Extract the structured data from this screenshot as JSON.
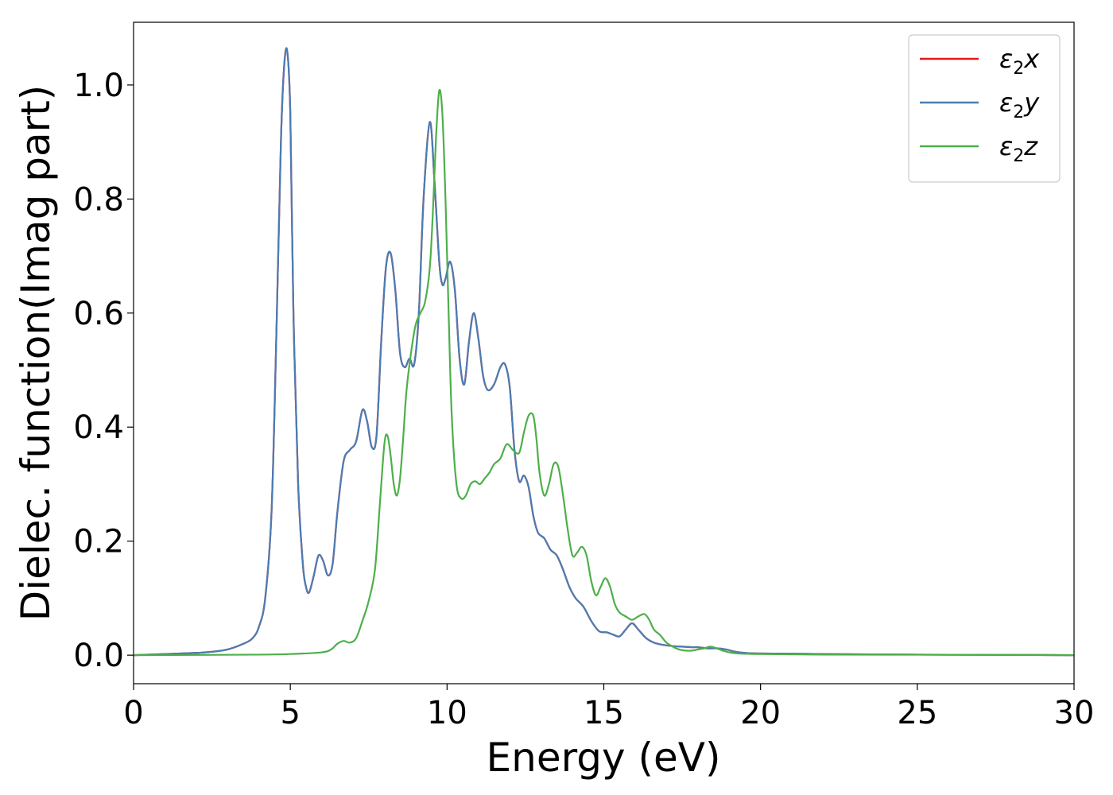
{
  "chart_data": {
    "type": "line",
    "xlabel": "Energy (eV)",
    "ylabel": "Dielec. function(Imag part)",
    "xlim": [
      0,
      30
    ],
    "ylim": [
      -0.05,
      1.11
    ],
    "xticks": [
      "0",
      "5",
      "10",
      "15",
      "20",
      "25",
      "30"
    ],
    "yticks": [
      "0.0",
      "0.2",
      "0.4",
      "0.6",
      "0.8",
      "1.0"
    ],
    "grid": false,
    "legend_position": "top-right",
    "series": [
      {
        "name": "ε₂x",
        "legend_symbol": "ε",
        "legend_sub": "2",
        "legend_suffix": "x",
        "color": "#e41a1c",
        "x": [
          0,
          1,
          2,
          2.5,
          3,
          3.5,
          3.8,
          4.0,
          4.2,
          4.4,
          4.55,
          4.7,
          4.8,
          4.9,
          5.0,
          5.1,
          5.25,
          5.4,
          5.5,
          5.6,
          5.75,
          5.9,
          6.05,
          6.2,
          6.35,
          6.5,
          6.7,
          6.9,
          7.1,
          7.3,
          7.45,
          7.6,
          7.75,
          7.9,
          8.05,
          8.2,
          8.35,
          8.5,
          8.65,
          8.8,
          8.95,
          9.1,
          9.25,
          9.45,
          9.6,
          9.75,
          9.85,
          9.95,
          10.1,
          10.25,
          10.4,
          10.55,
          10.7,
          10.85,
          11.0,
          11.15,
          11.3,
          11.5,
          11.7,
          11.85,
          12.0,
          12.15,
          12.3,
          12.45,
          12.6,
          12.75,
          12.9,
          13.1,
          13.3,
          13.5,
          13.7,
          13.9,
          14.1,
          14.35,
          14.6,
          14.85,
          15.1,
          15.3,
          15.5,
          15.7,
          15.9,
          16.1,
          16.35,
          16.6,
          16.9,
          17.2,
          17.5,
          17.8,
          18.0,
          18.3,
          18.6,
          18.9,
          19.2,
          19.5,
          20,
          22,
          25,
          28,
          30
        ],
        "values": [
          0.0,
          0.002,
          0.004,
          0.006,
          0.01,
          0.02,
          0.03,
          0.05,
          0.1,
          0.25,
          0.55,
          0.9,
          1.03,
          1.06,
          0.95,
          0.6,
          0.3,
          0.16,
          0.12,
          0.11,
          0.14,
          0.175,
          0.165,
          0.14,
          0.16,
          0.25,
          0.34,
          0.36,
          0.375,
          0.43,
          0.41,
          0.365,
          0.385,
          0.55,
          0.68,
          0.705,
          0.64,
          0.53,
          0.505,
          0.52,
          0.51,
          0.6,
          0.8,
          0.935,
          0.83,
          0.69,
          0.65,
          0.66,
          0.69,
          0.64,
          0.52,
          0.475,
          0.55,
          0.6,
          0.555,
          0.49,
          0.465,
          0.475,
          0.505,
          0.51,
          0.47,
          0.36,
          0.305,
          0.315,
          0.295,
          0.245,
          0.215,
          0.205,
          0.185,
          0.175,
          0.15,
          0.12,
          0.1,
          0.085,
          0.06,
          0.042,
          0.04,
          0.036,
          0.033,
          0.045,
          0.056,
          0.045,
          0.03,
          0.022,
          0.018,
          0.016,
          0.015,
          0.014,
          0.014,
          0.012,
          0.012,
          0.01,
          0.006,
          0.004,
          0.003,
          0.002,
          0.001,
          0.0005,
          0.0
        ]
      },
      {
        "name": "ε₂y",
        "legend_symbol": "ε",
        "legend_sub": "2",
        "legend_suffix": "y",
        "color": "#4a7db3",
        "x": [
          0,
          1,
          2,
          2.5,
          3,
          3.5,
          3.8,
          4.0,
          4.2,
          4.4,
          4.55,
          4.7,
          4.8,
          4.9,
          5.0,
          5.1,
          5.25,
          5.4,
          5.5,
          5.6,
          5.75,
          5.9,
          6.05,
          6.2,
          6.35,
          6.5,
          6.7,
          6.9,
          7.1,
          7.3,
          7.45,
          7.6,
          7.75,
          7.9,
          8.05,
          8.2,
          8.35,
          8.5,
          8.65,
          8.8,
          8.95,
          9.1,
          9.25,
          9.45,
          9.6,
          9.75,
          9.85,
          9.95,
          10.1,
          10.25,
          10.4,
          10.55,
          10.7,
          10.85,
          11.0,
          11.15,
          11.3,
          11.5,
          11.7,
          11.85,
          12.0,
          12.15,
          12.3,
          12.45,
          12.6,
          12.75,
          12.9,
          13.1,
          13.3,
          13.5,
          13.7,
          13.9,
          14.1,
          14.35,
          14.6,
          14.85,
          15.1,
          15.3,
          15.5,
          15.7,
          15.9,
          16.1,
          16.35,
          16.6,
          16.9,
          17.2,
          17.5,
          17.8,
          18.0,
          18.3,
          18.6,
          18.9,
          19.2,
          19.5,
          20,
          22,
          25,
          28,
          30
        ],
        "values": [
          0.0,
          0.002,
          0.004,
          0.006,
          0.01,
          0.02,
          0.03,
          0.05,
          0.1,
          0.25,
          0.55,
          0.9,
          1.03,
          1.06,
          0.95,
          0.6,
          0.3,
          0.16,
          0.12,
          0.11,
          0.14,
          0.175,
          0.165,
          0.14,
          0.16,
          0.25,
          0.34,
          0.36,
          0.375,
          0.43,
          0.41,
          0.365,
          0.385,
          0.55,
          0.68,
          0.705,
          0.64,
          0.53,
          0.505,
          0.52,
          0.51,
          0.6,
          0.8,
          0.935,
          0.83,
          0.69,
          0.65,
          0.66,
          0.69,
          0.64,
          0.52,
          0.475,
          0.55,
          0.6,
          0.555,
          0.49,
          0.465,
          0.475,
          0.505,
          0.51,
          0.47,
          0.36,
          0.305,
          0.315,
          0.295,
          0.245,
          0.215,
          0.205,
          0.185,
          0.175,
          0.15,
          0.12,
          0.1,
          0.085,
          0.06,
          0.042,
          0.04,
          0.036,
          0.033,
          0.045,
          0.056,
          0.045,
          0.03,
          0.022,
          0.018,
          0.016,
          0.015,
          0.014,
          0.014,
          0.012,
          0.012,
          0.01,
          0.006,
          0.004,
          0.003,
          0.002,
          0.001,
          0.0005,
          0.0
        ]
      },
      {
        "name": "ε₂z",
        "legend_symbol": "ε",
        "legend_sub": "2",
        "legend_suffix": "z",
        "color": "#4daf4a",
        "x": [
          0,
          2,
          4,
          5,
          6,
          6.3,
          6.5,
          6.7,
          6.9,
          7.1,
          7.3,
          7.5,
          7.7,
          7.85,
          8.0,
          8.1,
          8.2,
          8.3,
          8.4,
          8.5,
          8.6,
          8.7,
          8.85,
          9.0,
          9.15,
          9.3,
          9.45,
          9.55,
          9.65,
          9.75,
          9.85,
          9.95,
          10.05,
          10.15,
          10.3,
          10.45,
          10.6,
          10.75,
          10.9,
          11.05,
          11.2,
          11.35,
          11.5,
          11.7,
          11.9,
          12.1,
          12.3,
          12.45,
          12.6,
          12.75,
          12.85,
          12.95,
          13.1,
          13.25,
          13.4,
          13.55,
          13.7,
          13.85,
          14.0,
          14.15,
          14.3,
          14.45,
          14.6,
          14.75,
          14.9,
          15.05,
          15.2,
          15.35,
          15.5,
          15.7,
          15.9,
          16.1,
          16.3,
          16.45,
          16.6,
          16.8,
          17.0,
          17.2,
          17.4,
          17.6,
          17.8,
          18.0,
          18.2,
          18.4,
          18.6,
          18.8,
          19.0,
          19.3,
          20,
          22,
          25,
          28,
          30
        ],
        "values": [
          0.0,
          0.0005,
          0.001,
          0.002,
          0.005,
          0.01,
          0.02,
          0.025,
          0.022,
          0.03,
          0.06,
          0.095,
          0.15,
          0.26,
          0.37,
          0.385,
          0.35,
          0.3,
          0.28,
          0.31,
          0.38,
          0.46,
          0.53,
          0.58,
          0.6,
          0.62,
          0.68,
          0.78,
          0.91,
          0.99,
          0.95,
          0.8,
          0.6,
          0.42,
          0.3,
          0.275,
          0.28,
          0.3,
          0.305,
          0.3,
          0.31,
          0.32,
          0.335,
          0.345,
          0.37,
          0.36,
          0.355,
          0.39,
          0.42,
          0.42,
          0.38,
          0.32,
          0.28,
          0.3,
          0.335,
          0.33,
          0.28,
          0.22,
          0.175,
          0.18,
          0.19,
          0.175,
          0.13,
          0.105,
          0.12,
          0.135,
          0.12,
          0.09,
          0.075,
          0.068,
          0.062,
          0.068,
          0.072,
          0.062,
          0.045,
          0.035,
          0.022,
          0.015,
          0.01,
          0.008,
          0.008,
          0.01,
          0.012,
          0.015,
          0.012,
          0.008,
          0.005,
          0.003,
          0.002,
          0.001,
          0.0008,
          0.0005,
          0.0
        ]
      }
    ]
  }
}
